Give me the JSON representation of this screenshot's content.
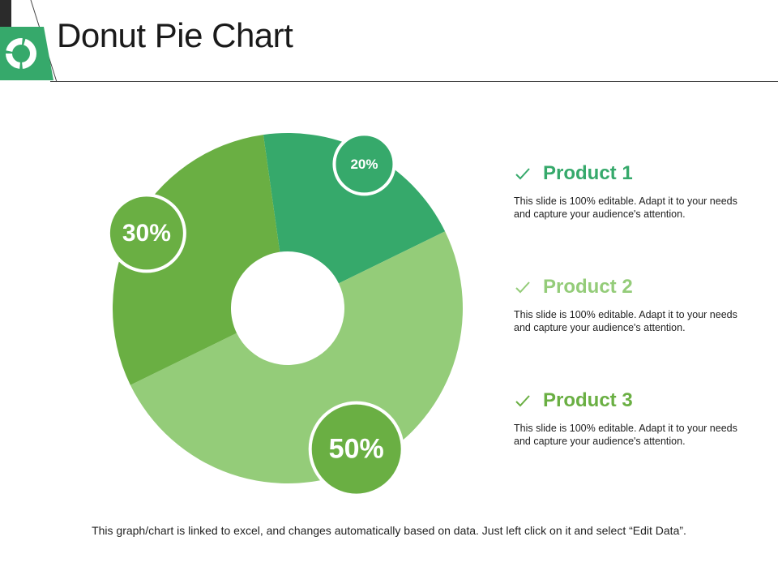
{
  "title": "Donut Pie Chart",
  "colors": {
    "accent": "#36a96b",
    "slice_product1": "#36a96b",
    "slice_product2": "#94cc79",
    "slice_product3": "#6aaf43",
    "text": "#1a1a1a"
  },
  "icons": {
    "logo": "donut-chart-icon",
    "check": "check-icon"
  },
  "chart_data": {
    "type": "donut",
    "title": "",
    "categories": [
      "Product 1",
      "Product 2",
      "Product 3"
    ],
    "values": [
      20,
      50,
      30
    ],
    "labels": [
      "20%",
      "50%",
      "30%"
    ],
    "colors": [
      "#36a96b",
      "#94cc79",
      "#6aaf43"
    ]
  },
  "products": [
    {
      "name": "Product 1",
      "color": "#36a96b",
      "description": "This slide is 100% editable. Adapt it to your needs and capture your audience's attention."
    },
    {
      "name": "Product 2",
      "color": "#94cc79",
      "description": "This slide is 100% editable. Adapt it to your needs and capture your audience's attention."
    },
    {
      "name": "Product 3",
      "color": "#6aaf43",
      "description": "This slide is 100% editable. Adapt it to your needs and capture your audience's attention."
    }
  ],
  "footer": "This graph/chart is linked to excel, and changes automatically  based on data. Just left click on it and select “Edit Data”."
}
